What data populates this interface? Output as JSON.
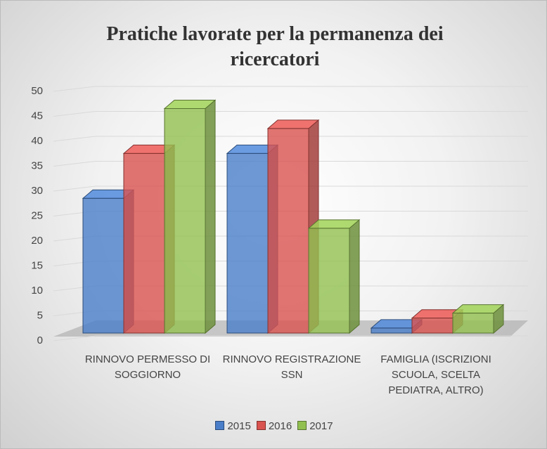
{
  "chart_data": {
    "type": "bar3d",
    "title": "Pratiche lavorate per la permanenza dei ricercatori",
    "categories": [
      "RINNOVO PERMESSO DI SOGGIORNO",
      "RINNOVO REGISTRAZIONE SSN",
      "FAMIGLIA (ISCRIZIONI SCUOLA, SCELTA PEDIATRA, ALTRO)"
    ],
    "series": [
      {
        "name": "2015",
        "color": "#4a7ec9",
        "values": [
          27,
          36,
          1
        ]
      },
      {
        "name": "2016",
        "color": "#d9534f",
        "values": [
          36,
          41,
          3
        ]
      },
      {
        "name": "2017",
        "color": "#92c050",
        "values": [
          45,
          21,
          4
        ]
      }
    ],
    "ylim": [
      0,
      50
    ],
    "yticks": [
      0,
      5,
      10,
      15,
      20,
      25,
      30,
      35,
      40,
      45,
      50
    ],
    "grid": true,
    "legend": "bottom"
  }
}
